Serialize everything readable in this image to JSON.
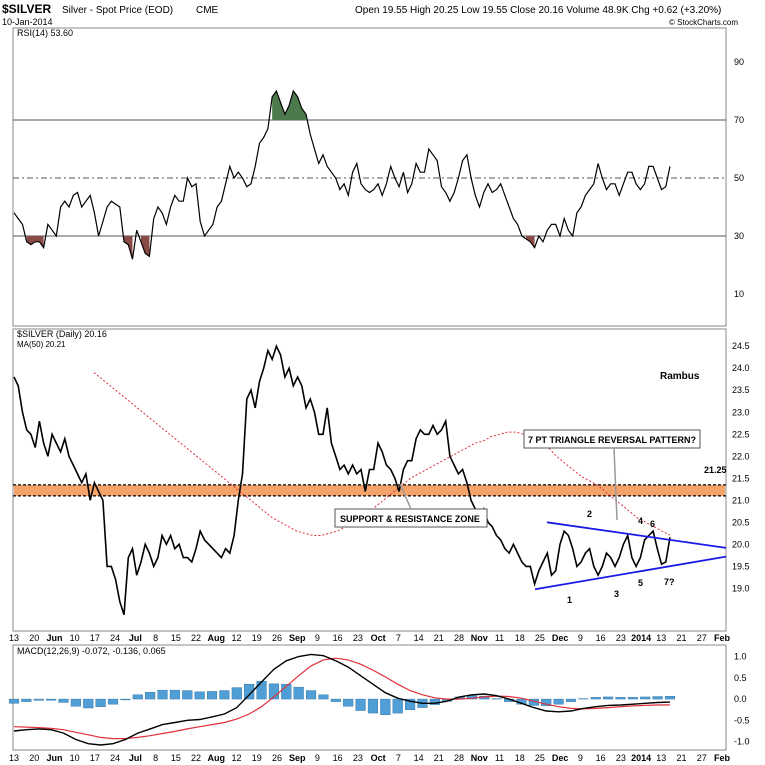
{
  "header": {
    "symbol": "$SILVER",
    "name": "Silver - Spot Price (EOD)",
    "exchange": "CME",
    "date": "10-Jan-2014",
    "quote": "Open 19.55  High 20.25  Low 19.55  Close 20.16  Volume 48.9K  Chg +0.62 (+3.20%)",
    "credit": "© StockCharts.com"
  },
  "colors": {
    "price": "#000000",
    "ma": "#e0303a",
    "sr_zone": "#f4a46b",
    "triangle": "#1a1ae6",
    "rsi_high": "#4d7a4d",
    "rsi_low": "#8a4a45",
    "hist": "#4f9fd6"
  },
  "chart_data": [
    {
      "type": "line",
      "title": "RSI(14) 53.60",
      "ylim": [
        0,
        100
      ],
      "yticks": [
        "90",
        "70",
        "50",
        "30",
        "10"
      ],
      "reference_lines": [
        70,
        50,
        30
      ],
      "series": [
        {
          "name": "RSI(14)",
          "values": [
            38,
            36,
            34,
            28,
            27,
            28,
            28,
            26,
            34,
            32,
            30,
            40,
            42,
            40,
            44,
            45,
            40,
            42,
            44,
            38,
            30,
            35,
            40,
            42,
            41,
            40,
            28,
            27,
            22,
            32,
            28,
            24,
            23,
            36,
            40,
            38,
            34,
            40,
            44,
            42,
            42,
            50,
            47,
            48,
            35,
            30,
            32,
            34,
            40,
            42,
            48,
            54,
            50,
            52,
            50,
            47,
            48,
            54,
            62,
            64,
            67,
            78,
            80,
            76,
            72,
            75,
            80,
            78,
            74,
            72,
            65,
            60,
            55,
            58,
            54,
            52,
            50,
            46,
            48,
            44,
            52,
            55,
            48,
            46,
            45,
            46,
            48,
            44,
            48,
            54,
            50,
            47,
            52,
            45,
            48,
            55,
            52,
            52,
            60,
            58,
            56,
            47,
            45,
            42,
            45,
            50,
            56,
            58,
            50,
            44,
            40,
            45,
            48,
            45,
            46,
            48,
            44,
            40,
            36,
            34,
            30,
            29,
            28,
            26,
            30,
            28,
            32,
            34,
            34,
            30,
            36,
            32,
            30,
            38,
            40,
            44,
            46,
            48,
            55,
            50,
            46,
            48,
            48,
            44,
            48,
            52,
            52,
            48,
            46,
            48,
            54,
            54,
            50,
            46,
            47,
            54
          ]
        }
      ]
    },
    {
      "type": "line",
      "title": "$SILVER (Daily) 20.16",
      "ylim": [
        18.1,
        24.8
      ],
      "yticks": [
        "24.5",
        "24.0",
        "23.5",
        "23.0",
        "22.5",
        "22.0",
        "21.5",
        "21.0",
        "20.5",
        "20.0",
        "19.5",
        "19.0"
      ],
      "series": [
        {
          "name": "$SILVER (Daily) 20.16",
          "values": [
            23.8,
            23.6,
            23.0,
            22.6,
            22.5,
            22.2,
            22.8,
            22.3,
            22.0,
            22.5,
            22.3,
            22.1,
            22.4,
            22.0,
            21.8,
            21.6,
            21.4,
            21.6,
            21.0,
            21.4,
            21.2,
            21.0,
            19.5,
            19.5,
            19.2,
            18.7,
            18.4,
            19.7,
            19.9,
            19.3,
            19.6,
            20.0,
            19.8,
            19.5,
            19.7,
            20.2,
            20.0,
            20.2,
            19.9,
            20.0,
            19.7,
            19.7,
            19.6,
            19.9,
            20.3,
            20.1,
            20.0,
            19.9,
            19.8,
            19.7,
            19.9,
            19.8,
            20.2,
            21.0,
            21.6,
            23.3,
            23.5,
            23.1,
            23.7,
            24.0,
            24.4,
            24.2,
            24.5,
            24.3,
            23.8,
            24.0,
            23.6,
            23.8,
            23.6,
            23.1,
            23.3,
            23.0,
            22.5,
            22.5,
            23.1,
            22.3,
            22.0,
            21.7,
            21.8,
            21.6,
            21.8,
            21.6,
            21.7,
            21.2,
            21.7,
            21.7,
            22.3,
            22.1,
            21.8,
            21.7,
            21.5,
            21.2,
            21.7,
            21.9,
            21.9,
            22.4,
            22.6,
            22.5,
            22.5,
            22.7,
            22.5,
            22.6,
            22.8,
            22.0,
            21.8,
            21.6,
            21.7,
            21.4,
            21.0,
            20.8,
            20.6,
            20.8,
            20.5,
            20.4,
            20.2,
            20.1,
            19.9,
            19.8,
            20.0,
            19.8,
            19.6,
            19.5,
            19.5,
            19.1,
            19.4,
            19.6,
            19.8,
            19.3,
            19.4,
            20.0,
            20.3,
            20.2,
            19.9,
            19.5,
            19.6,
            19.8,
            19.9,
            19.5,
            19.3,
            19.5,
            19.8,
            19.7,
            19.5,
            19.7,
            20.0,
            20.2,
            19.7,
            19.5,
            19.7,
            20.1,
            20.2,
            20.3,
            19.9,
            19.55,
            19.6,
            20.16
          ]
        },
        {
          "name": "MA(50) 20.21",
          "values": [
            23.9,
            23.75,
            23.6,
            23.45,
            23.3,
            23.15,
            23.0,
            22.85,
            22.7,
            22.55,
            22.4,
            22.25,
            22.1,
            21.95,
            21.8,
            21.65,
            21.5,
            21.35,
            21.2,
            21.05,
            20.9,
            20.75,
            20.6,
            20.5,
            20.4,
            20.3,
            20.25,
            20.2,
            20.2,
            20.25,
            20.3,
            20.4,
            20.5,
            20.6,
            20.75,
            20.9,
            21.05,
            21.2,
            21.35,
            21.5,
            21.6,
            21.7,
            21.8,
            21.9,
            22.0,
            22.1,
            22.2,
            22.3,
            22.35,
            22.45,
            22.5,
            22.55,
            22.55,
            22.5,
            22.45,
            22.35,
            22.2,
            22.0,
            21.85,
            21.7,
            21.55,
            21.45,
            21.35,
            21.2,
            21.05,
            20.9,
            20.75,
            20.6,
            20.5,
            20.4,
            20.3,
            20.21
          ]
        }
      ],
      "annotations": [
        {
          "text": "Rambus"
        },
        {
          "text": "7 PT TRIANGLE REVERSAL PATTERN?"
        },
        {
          "text": "SUPPORT & RESISTANCE ZONE"
        },
        {
          "text": "21.25"
        }
      ],
      "sr_zone": {
        "low": 21.1,
        "high": 21.35,
        "level": 21.25
      },
      "triangle_points": [
        "1",
        "2",
        "3",
        "4",
        "5",
        "6",
        "7?"
      ]
    },
    {
      "type": "line",
      "title": "MACD(12,26,9) -0.072, -0.136, 0.065",
      "ylim": [
        -1.15,
        1.2
      ],
      "yticks": [
        "1.0",
        "0.5",
        "0.0",
        "-0.5",
        "-1.0"
      ],
      "series": [
        {
          "name": "MACD",
          "values": [
            -0.75,
            -0.72,
            -0.7,
            -0.72,
            -0.8,
            -0.95,
            -1.05,
            -1.08,
            -1.05,
            -0.95,
            -0.8,
            -0.7,
            -0.6,
            -0.55,
            -0.5,
            -0.48,
            -0.42,
            -0.35,
            -0.2,
            0.1,
            0.4,
            0.7,
            0.9,
            1.0,
            1.05,
            1.02,
            0.9,
            0.75,
            0.55,
            0.35,
            0.15,
            0.02,
            -0.05,
            -0.1,
            -0.1,
            -0.05,
            0.05,
            0.1,
            0.12,
            0.08,
            0.0,
            -0.1,
            -0.2,
            -0.28,
            -0.3,
            -0.28,
            -0.22,
            -0.18,
            -0.15,
            -0.14,
            -0.12,
            -0.1,
            -0.08,
            -0.072
          ]
        },
        {
          "name": "Signal",
          "values": [
            -0.65,
            -0.66,
            -0.67,
            -0.69,
            -0.72,
            -0.78,
            -0.84,
            -0.9,
            -0.93,
            -0.93,
            -0.9,
            -0.86,
            -0.81,
            -0.76,
            -0.7,
            -0.65,
            -0.6,
            -0.55,
            -0.47,
            -0.35,
            -0.18,
            0.05,
            0.3,
            0.55,
            0.78,
            0.92,
            0.96,
            0.92,
            0.82,
            0.68,
            0.52,
            0.35,
            0.2,
            0.1,
            0.03,
            0.0,
            0.0,
            0.02,
            0.05,
            0.07,
            0.06,
            0.02,
            -0.05,
            -0.12,
            -0.18,
            -0.22,
            -0.23,
            -0.22,
            -0.2,
            -0.18,
            -0.16,
            -0.15,
            -0.14,
            -0.136
          ]
        },
        {
          "name": "Histogram",
          "values": [
            -0.1,
            -0.06,
            -0.03,
            -0.03,
            -0.08,
            -0.17,
            -0.21,
            -0.18,
            -0.12,
            -0.02,
            0.1,
            0.16,
            0.21,
            0.21,
            0.2,
            0.17,
            0.18,
            0.2,
            0.27,
            0.35,
            0.42,
            0.36,
            0.35,
            0.28,
            0.2,
            0.1,
            -0.06,
            -0.17,
            -0.27,
            -0.33,
            -0.37,
            -0.33,
            -0.25,
            -0.2,
            -0.13,
            -0.05,
            0.05,
            0.08,
            0.07,
            0.01,
            -0.06,
            -0.12,
            -0.15,
            -0.16,
            -0.12,
            -0.06,
            0.01,
            0.04,
            0.05,
            0.04,
            0.04,
            0.05,
            0.06,
            0.065
          ]
        }
      ]
    }
  ],
  "xaxis": {
    "labels": [
      "13",
      "20",
      "Jun",
      "10",
      "17",
      "24",
      "Jul",
      "8",
      "15",
      "22",
      "Aug",
      "12",
      "19",
      "26",
      "Sep",
      "9",
      "16",
      "23",
      "Oct",
      "7",
      "14",
      "21",
      "28",
      "Nov",
      "11",
      "18",
      "25",
      "Dec",
      "9",
      "16",
      "23",
      "2014",
      "13",
      "21",
      "27",
      "Feb"
    ]
  }
}
